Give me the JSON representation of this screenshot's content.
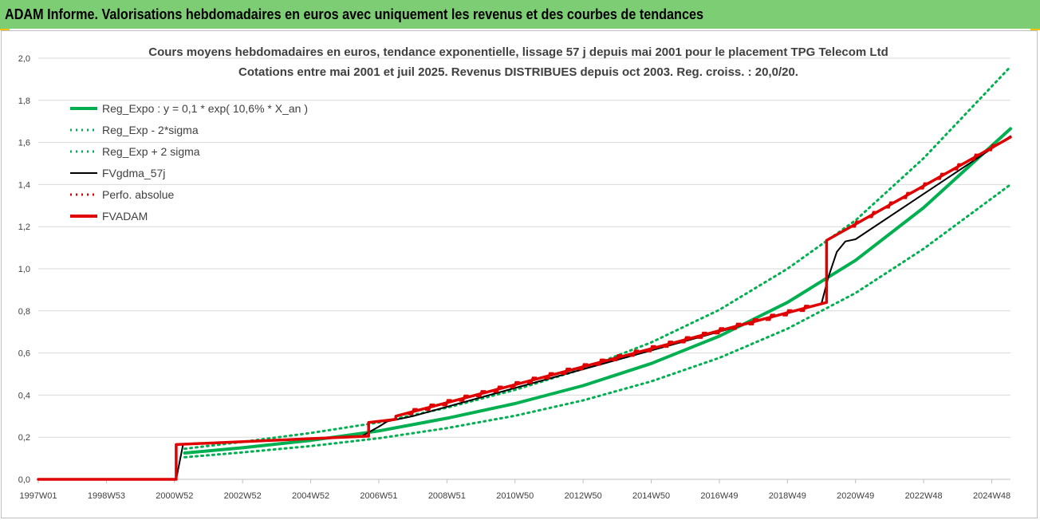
{
  "banner": {
    "title": "ADAM Informe. Valorisations hebdomadaires en euros avec uniquement les revenus et des courbes de tendances"
  },
  "colors": {
    "banner": "#7ccd73",
    "green": "#00b050",
    "black": "#000000",
    "red": "#e00000"
  },
  "chart_data": {
    "type": "line",
    "title": "Cours moyens hebdomadaires en euros, tendance exponentielle, lissage 57 j depuis mai 2001 pour le placement TPG Telecom Ltd",
    "subtitle": "Cotations entre mai 2001 et juil 2025. Revenus DISTRIBUES depuis oct 2003.  Reg. croiss. : 20,0/20.",
    "ylim": [
      0,
      2.0
    ],
    "y_ticks": [
      "0,0",
      "0,2",
      "0,4",
      "0,6",
      "0,8",
      "1,0",
      "1,2",
      "1,4",
      "1,6",
      "1,8",
      "2,0"
    ],
    "xlim": [
      1997.0,
      2025.55
    ],
    "x_ticks": [
      {
        "label": "1997W01",
        "year": 1997.0
      },
      {
        "label": "1998W53",
        "year": 1999.0
      },
      {
        "label": "2000W52",
        "year": 2001.0
      },
      {
        "label": "2002W52",
        "year": 2003.0
      },
      {
        "label": "2004W52",
        "year": 2005.0
      },
      {
        "label": "2006W51",
        "year": 2007.0
      },
      {
        "label": "2008W51",
        "year": 2009.0
      },
      {
        "label": "2010W50",
        "year": 2011.0
      },
      {
        "label": "2012W50",
        "year": 2013.0
      },
      {
        "label": "2014W50",
        "year": 2015.0
      },
      {
        "label": "2016W49",
        "year": 2017.0
      },
      {
        "label": "2018W49",
        "year": 2019.0
      },
      {
        "label": "2020W49",
        "year": 2021.0
      },
      {
        "label": "2022W48",
        "year": 2023.0
      },
      {
        "label": "2024W48",
        "year": 2025.0
      }
    ],
    "legend": [
      {
        "name": "Reg_Expo : y = 0,1 * exp( 10,6% *  X_an )",
        "color": "#00b050",
        "style": "solid"
      },
      {
        "name": "Reg_Exp - 2*sigma",
        "color": "#00b050",
        "style": "dotted"
      },
      {
        "name": "Reg_Exp + 2 sigma",
        "color": "#00b050",
        "style": "dotted"
      },
      {
        "name": "FVgdma_57j",
        "color": "#000000",
        "style": "solid"
      },
      {
        "name": "Perfo. absolue",
        "color": "#e00000",
        "style": "dotted"
      },
      {
        "name": "FVADAM",
        "color": "#e00000",
        "style": "solid"
      }
    ],
    "series": [
      {
        "name": "Reg_Expo : y = 0,1 * exp( 10,6% *  X_an )",
        "x": [
          2001.3,
          2003,
          2005,
          2007,
          2009,
          2011,
          2013,
          2015,
          2017,
          2019,
          2021,
          2023,
          2025.55
        ],
        "values": [
          0.125,
          0.15,
          0.185,
          0.23,
          0.29,
          0.36,
          0.445,
          0.55,
          0.68,
          0.84,
          1.04,
          1.29,
          1.665
        ]
      },
      {
        "name": "Reg_Exp - 2*sigma",
        "x": [
          2001.3,
          2003,
          2005,
          2007,
          2009,
          2011,
          2013,
          2015,
          2017,
          2019,
          2021,
          2023,
          2025.55
        ],
        "values": [
          0.105,
          0.128,
          0.158,
          0.195,
          0.243,
          0.302,
          0.375,
          0.465,
          0.577,
          0.715,
          0.885,
          1.095,
          1.4
        ]
      },
      {
        "name": "Reg_Exp + 2 sigma",
        "x": [
          2001.3,
          2003,
          2005,
          2007,
          2009,
          2011,
          2013,
          2015,
          2017,
          2019,
          2021,
          2023,
          2025.55
        ],
        "values": [
          0.145,
          0.178,
          0.22,
          0.27,
          0.34,
          0.425,
          0.525,
          0.65,
          0.805,
          1.0,
          1.23,
          1.525,
          1.96
        ]
      },
      {
        "name": "FVgdma_57j",
        "x": [
          1997.0,
          2001.0,
          2001.05,
          2001.25,
          2006.5,
          2007.0,
          2007.25,
          2008.0,
          2020.0,
          2020.2,
          2020.45,
          2020.7,
          2021.0,
          2025.55
        ],
        "values": [
          0,
          0,
          0,
          0.165,
          0.205,
          0.25,
          0.275,
          0.3,
          0.835,
          0.96,
          1.08,
          1.13,
          1.14,
          1.63
        ]
      },
      {
        "name": "FVADAM",
        "x": [
          1997.0,
          2001.05,
          2001.05,
          2006.7,
          2006.7,
          2007.5,
          2007.5,
          2020.15,
          2020.15,
          2025.55
        ],
        "values": [
          0,
          0,
          0.165,
          0.205,
          0.27,
          0.285,
          0.3,
          0.84,
          1.135,
          1.625
        ]
      }
    ]
  }
}
